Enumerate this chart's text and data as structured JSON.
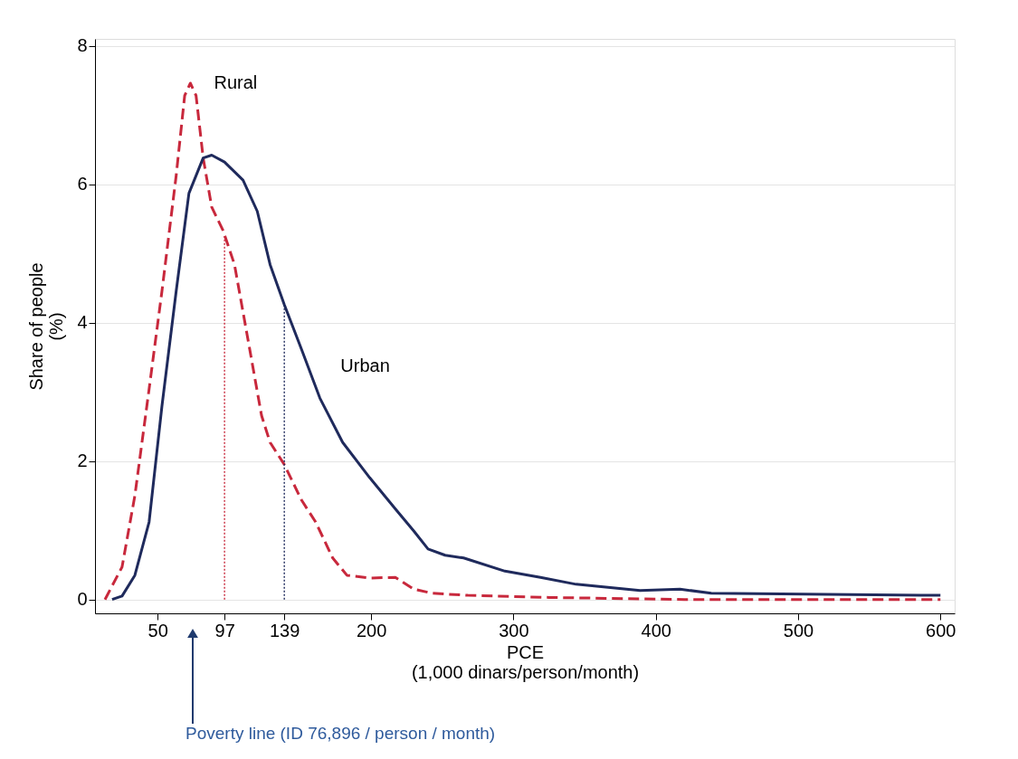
{
  "chart_data": {
    "type": "line",
    "xlabel": "PCE\n(1,000 dinars/person/month)",
    "ylabel": "Share of people\n(%)",
    "xlim": [
      6,
      610
    ],
    "ylim": [
      -0.2,
      8.1
    ],
    "xticks": [
      50,
      97,
      139,
      200,
      300,
      400,
      500,
      600
    ],
    "yticks": [
      0,
      2,
      4,
      6,
      8
    ],
    "grid": "y",
    "series": [
      {
        "name": "Rural",
        "color": "#c8283c",
        "line_style": "dashed",
        "x": [
          13,
          25,
          34,
          44,
          53,
          63,
          69,
          73,
          77,
          82,
          88,
          96,
          104,
          113,
          123,
          129,
          139,
          151,
          161,
          173,
          183,
          199,
          217,
          230,
          243,
          268,
          325,
          420,
          600
        ],
        "values": [
          0,
          0.47,
          1.5,
          3.04,
          4.45,
          6.12,
          7.28,
          7.46,
          7.28,
          6.38,
          5.67,
          5.33,
          4.84,
          3.81,
          2.66,
          2.27,
          1.95,
          1.44,
          1.12,
          0.6,
          0.35,
          0.31,
          0.32,
          0.15,
          0.09,
          0.06,
          0.03,
          0,
          0
        ]
      },
      {
        "name": "Urban",
        "color": "#1f2a5c",
        "line_style": "solid",
        "x": [
          18,
          25,
          34,
          44,
          53,
          63,
          72,
          82,
          88,
          97,
          110,
          120,
          129,
          139,
          151,
          164,
          180,
          199,
          217,
          230,
          240,
          252,
          265,
          294,
          319,
          344,
          389,
          417,
          439,
          600
        ],
        "values": [
          0,
          0.05,
          0.35,
          1.12,
          2.79,
          4.45,
          5.87,
          6.38,
          6.42,
          6.32,
          6.06,
          5.61,
          4.84,
          4.26,
          3.62,
          2.91,
          2.27,
          1.76,
          1.31,
          0.99,
          0.73,
          0.64,
          0.6,
          0.41,
          0.32,
          0.22,
          0.13,
          0.15,
          0.09,
          0.06
        ]
      },
      {
        "color": "#c8283c",
        "line_style": "dotted",
        "x": [
          97,
          97
        ],
        "values": [
          0,
          5.25
        ]
      },
      {
        "color": "#1f2a5c",
        "line_style": "dotted",
        "x": [
          139,
          139
        ],
        "values": [
          0,
          4.25
        ]
      }
    ],
    "annotations": [
      "Poverty line (ID 76,896 / person / month)"
    ]
  }
}
